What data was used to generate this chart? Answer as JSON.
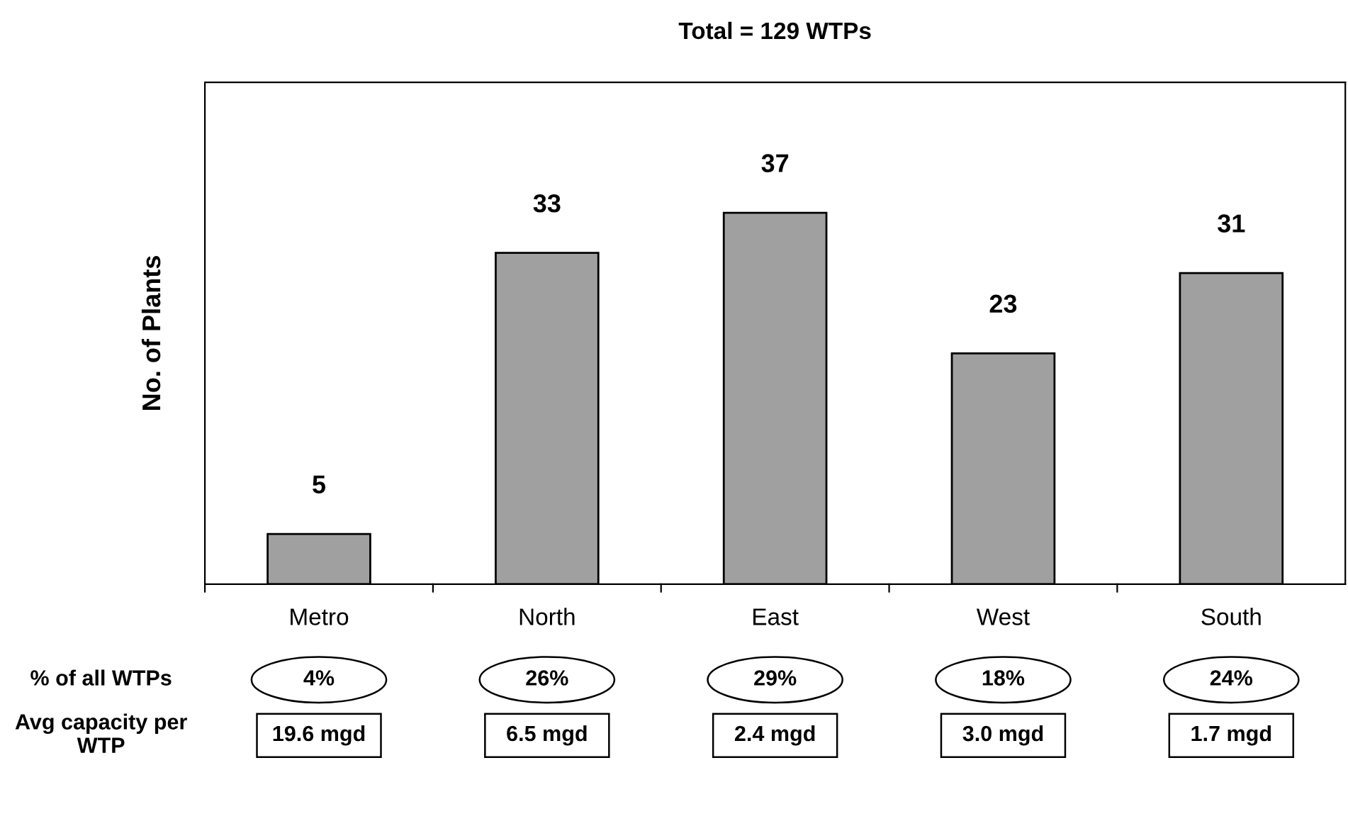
{
  "chart_data": {
    "type": "bar",
    "title": "Total = 129 WTPs",
    "ylabel": "No. of Plants",
    "categories": [
      "Metro",
      "North",
      "East",
      "West",
      "South"
    ],
    "values": [
      5,
      33,
      37,
      23,
      31
    ],
    "color": "#a0a0a0",
    "ylim": [
      0,
      50
    ],
    "data_labels": true,
    "tick_labels": "x",
    "grid": false,
    "legend": false,
    "annotations": [
      "% of all WTPs",
      "4%",
      "26%",
      "29%",
      "18%",
      "24%",
      "Avg capacity per WTP",
      "19.6 mgd",
      "6.5 mgd",
      "2.4 mgd",
      "3.0 mgd",
      "1.7 mgd"
    ]
  }
}
